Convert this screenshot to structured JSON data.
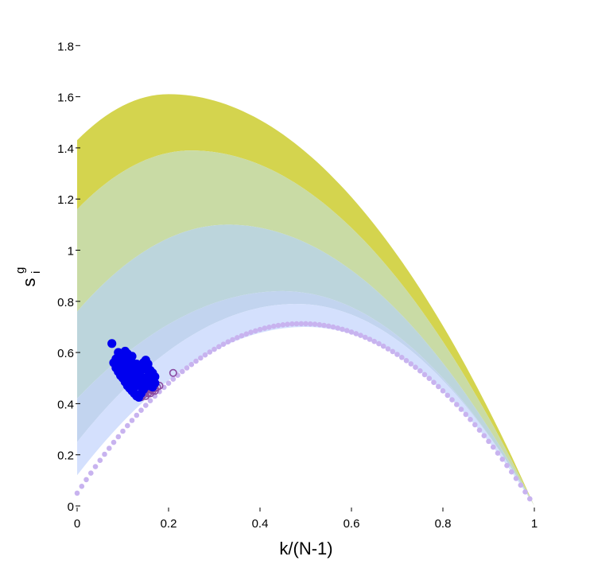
{
  "chart_data": {
    "type": "scatter",
    "title": "",
    "xlabel": "k/(N-1)",
    "ylabel": {
      "base": "s",
      "sup": "g",
      "sub": "i"
    },
    "xlim": [
      0,
      1
    ],
    "ylim": [
      0,
      1.85
    ],
    "x_ticks": [
      {
        "v": 0,
        "label": "0"
      },
      {
        "v": 0.2,
        "label": "0.2"
      },
      {
        "v": 0.4,
        "label": "0.4"
      },
      {
        "v": 0.6,
        "label": "0.6"
      },
      {
        "v": 0.8,
        "label": "0.8"
      },
      {
        "v": 1,
        "label": "1"
      }
    ],
    "y_ticks": [
      {
        "v": 0,
        "label": "0"
      },
      {
        "v": 0.2,
        "label": "0.2"
      },
      {
        "v": 0.4,
        "label": "0.4"
      },
      {
        "v": 0.6,
        "label": "0.6"
      },
      {
        "v": 0.8,
        "label": "0.8"
      },
      {
        "v": 1,
        "label": "1"
      },
      {
        "v": 1.2,
        "label": "1.2"
      },
      {
        "v": 1.4,
        "label": "1.4"
      },
      {
        "v": 1.6,
        "label": "1.6"
      },
      {
        "v": 1.8,
        "label": "1.8"
      }
    ],
    "grid": false,
    "legend": "none",
    "bands": [
      {
        "color": "#d4d44e",
        "upper": {
          "x0": 1.43,
          "xpeak": 0.2,
          "ypeak": 1.61
        },
        "lower": {
          "x0": 1.16,
          "xpeak": 0.25,
          "ypeak": 1.39
        }
      },
      {
        "color": "#c9dba5",
        "upper": {
          "x0": 1.16,
          "xpeak": 0.25,
          "ypeak": 1.39
        },
        "lower": {
          "x0": 0.76,
          "xpeak": 0.33,
          "ypeak": 1.1
        }
      },
      {
        "color": "#bcd5dc",
        "upper": {
          "x0": 0.76,
          "xpeak": 0.33,
          "ypeak": 1.1
        },
        "lower": {
          "x0": 0.42,
          "xpeak": 0.45,
          "ypeak": 0.84
        }
      },
      {
        "color": "#c2d4ef",
        "upper": {
          "x0": 0.42,
          "xpeak": 0.45,
          "ypeak": 0.84
        },
        "lower": {
          "x0": 0.25,
          "xpeak": 0.48,
          "ypeak": 0.79
        }
      },
      {
        "color": "#d4e0fd",
        "upper": {
          "x0": 0.25,
          "xpeak": 0.48,
          "ypeak": 0.79
        },
        "lower": {
          "x0": 0.12,
          "xpeak": 0.5,
          "ypeak": 0.7
        }
      }
    ],
    "series": [
      {
        "kind": "reference-dots",
        "color": "#c8b3ef",
        "x_start": 0,
        "x_end": 0.99,
        "count": 100,
        "ymax": 0.7
      },
      {
        "kind": "open-circles",
        "color": "#8a4aa0",
        "points": [
          [
            0.135,
            0.43
          ],
          [
            0.14,
            0.44
          ],
          [
            0.145,
            0.435
          ],
          [
            0.15,
            0.45
          ],
          [
            0.155,
            0.44
          ],
          [
            0.16,
            0.455
          ],
          [
            0.165,
            0.45
          ],
          [
            0.17,
            0.46
          ],
          [
            0.175,
            0.465
          ],
          [
            0.18,
            0.47
          ],
          [
            0.14,
            0.425
          ],
          [
            0.15,
            0.43
          ],
          [
            0.16,
            0.44
          ],
          [
            0.17,
            0.45
          ],
          [
            0.21,
            0.52
          ]
        ]
      },
      {
        "kind": "filled-dots",
        "color": "#0000ee",
        "points": [
          [
            0.076,
            0.635
          ],
          [
            0.09,
            0.6
          ],
          [
            0.1,
            0.59
          ],
          [
            0.105,
            0.605
          ],
          [
            0.11,
            0.595
          ],
          [
            0.08,
            0.56
          ],
          [
            0.085,
            0.54
          ],
          [
            0.09,
            0.555
          ],
          [
            0.095,
            0.535
          ],
          [
            0.1,
            0.55
          ],
          [
            0.105,
            0.52
          ],
          [
            0.11,
            0.535
          ],
          [
            0.115,
            0.51
          ],
          [
            0.12,
            0.525
          ],
          [
            0.125,
            0.5
          ],
          [
            0.13,
            0.515
          ],
          [
            0.135,
            0.49
          ],
          [
            0.14,
            0.505
          ],
          [
            0.145,
            0.48
          ],
          [
            0.15,
            0.495
          ],
          [
            0.155,
            0.47
          ],
          [
            0.16,
            0.485
          ],
          [
            0.165,
            0.465
          ],
          [
            0.17,
            0.48
          ],
          [
            0.12,
            0.56
          ],
          [
            0.125,
            0.545
          ],
          [
            0.13,
            0.555
          ],
          [
            0.135,
            0.54
          ],
          [
            0.14,
            0.55
          ],
          [
            0.145,
            0.535
          ],
          [
            0.15,
            0.545
          ],
          [
            0.155,
            0.53
          ],
          [
            0.15,
            0.57
          ],
          [
            0.145,
            0.56
          ],
          [
            0.155,
            0.555
          ],
          [
            0.16,
            0.51
          ],
          [
            0.165,
            0.5
          ],
          [
            0.17,
            0.505
          ],
          [
            0.1,
            0.5
          ],
          [
            0.105,
            0.485
          ],
          [
            0.11,
            0.47
          ],
          [
            0.115,
            0.46
          ],
          [
            0.12,
            0.45
          ],
          [
            0.125,
            0.44
          ],
          [
            0.13,
            0.43
          ],
          [
            0.135,
            0.425
          ],
          [
            0.14,
            0.44
          ],
          [
            0.145,
            0.455
          ],
          [
            0.095,
            0.51
          ],
          [
            0.09,
            0.525
          ],
          [
            0.085,
            0.575
          ],
          [
            0.095,
            0.58
          ],
          [
            0.115,
            0.57
          ],
          [
            0.12,
            0.585
          ],
          [
            0.11,
            0.56
          ],
          [
            0.1,
            0.565
          ],
          [
            0.13,
            0.47
          ],
          [
            0.125,
            0.48
          ],
          [
            0.115,
            0.49
          ],
          [
            0.11,
            0.505
          ],
          [
            0.14,
            0.47
          ],
          [
            0.145,
            0.5
          ],
          [
            0.155,
            0.505
          ],
          [
            0.16,
            0.53
          ],
          [
            0.165,
            0.52
          ]
        ]
      }
    ]
  }
}
